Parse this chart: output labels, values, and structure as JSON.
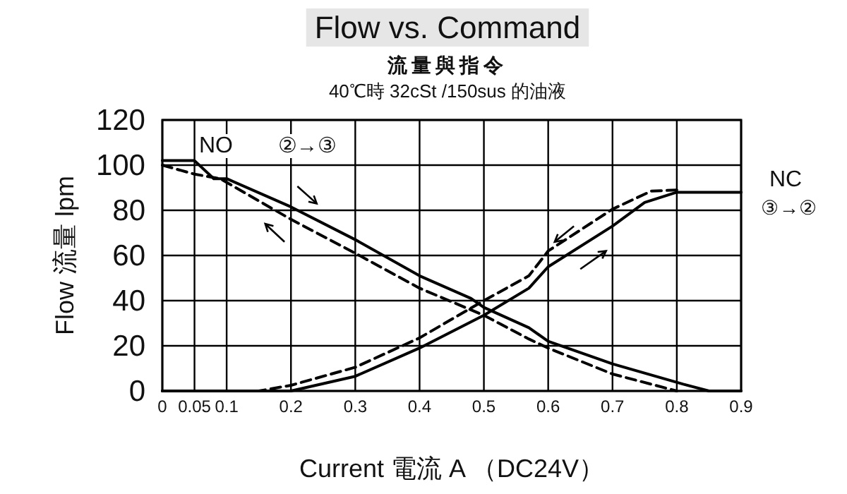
{
  "chart_data": {
    "type": "line",
    "title": "Flow  vs. Command",
    "subtitle": "流量與指令",
    "xlabel": "Current 電流 A （DC24V）",
    "ylabel": "Flow 流量 lpm",
    "annotations": [
      "40℃時 32cSt /150sus 的油液",
      "NO",
      "②→③",
      "NC",
      "③→②"
    ],
    "xlim": [
      0,
      0.9
    ],
    "ylim": [
      0,
      120
    ],
    "xticks": [
      0,
      0.05,
      0.1,
      0.2,
      0.3,
      0.4,
      0.5,
      0.6,
      0.7,
      0.8,
      0.9
    ],
    "yticks": [
      0,
      20,
      40,
      60,
      80,
      100,
      120
    ],
    "grid": true,
    "series": [
      {
        "color": "#000000",
        "line_style": "solid",
        "x": [
          0,
          0.05,
          0.08,
          0.1,
          0.2,
          0.3,
          0.4,
          0.48,
          0.5,
          0.57,
          0.6,
          0.7,
          0.81,
          0.85,
          0.9
        ],
        "values": [
          102,
          102,
          94,
          94,
          81.5,
          67,
          51,
          41,
          37,
          28,
          22,
          12,
          3,
          0,
          0
        ]
      },
      {
        "color": "#000000",
        "line_style": "dashed",
        "x": [
          0,
          0.05,
          0.09,
          0.2,
          0.3,
          0.4,
          0.5,
          0.57,
          0.6,
          0.7,
          0.8
        ],
        "values": [
          100,
          96,
          94,
          76,
          61,
          45.5,
          33.5,
          23,
          19,
          7.5,
          0
        ]
      },
      {
        "color": "#000000",
        "line_style": "solid",
        "x": [
          0,
          0.2,
          0.3,
          0.4,
          0.5,
          0.57,
          0.6,
          0.7,
          0.75,
          0.8,
          0.9
        ],
        "values": [
          0,
          0,
          6.5,
          19,
          33.5,
          45.5,
          55,
          73,
          83.5,
          88,
          88
        ]
      },
      {
        "color": "#000000",
        "line_style": "dashed",
        "x": [
          0,
          0.15,
          0.2,
          0.3,
          0.4,
          0.5,
          0.57,
          0.6,
          0.7,
          0.76,
          0.8
        ],
        "values": [
          0,
          0,
          2.5,
          10.5,
          23.5,
          40,
          51,
          62,
          80.5,
          88.5,
          89
        ]
      }
    ]
  }
}
